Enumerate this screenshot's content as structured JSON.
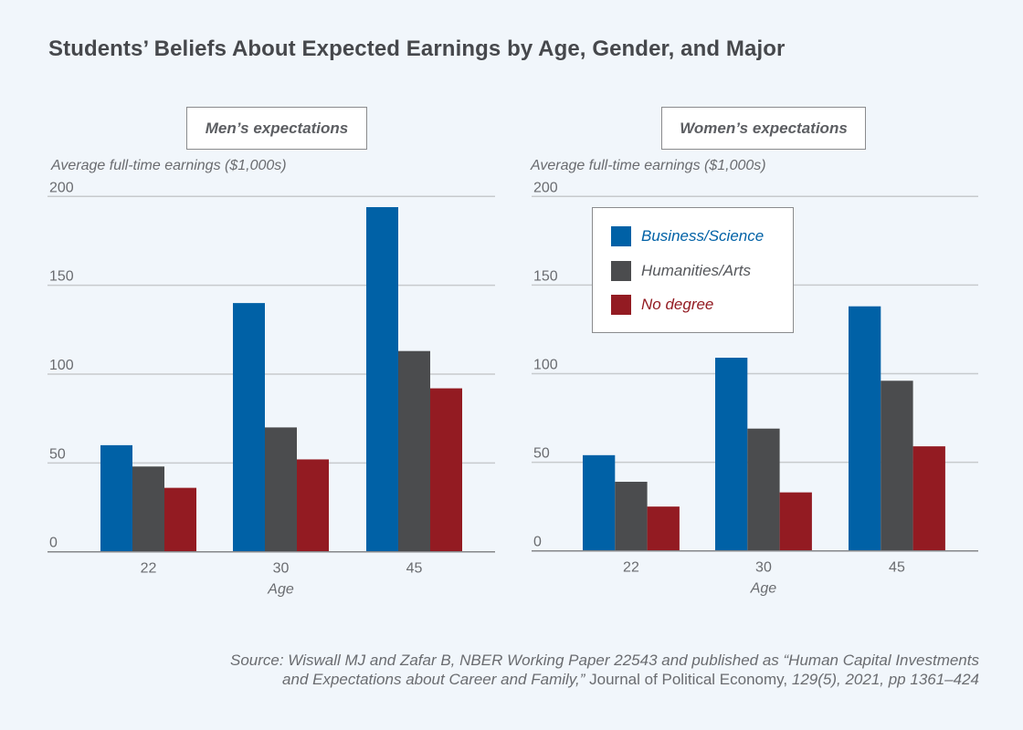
{
  "chart_data": [
    {
      "type": "bar",
      "title": "Students’ Beliefs About Expected Earnings by Age, Gender, and Major",
      "panel_title": "Men’s expectations",
      "ylabel": "Average full-time earnings ($1,000s)",
      "xlabel": "Age",
      "categories": [
        "22",
        "30",
        "45"
      ],
      "ylim": [
        0,
        200
      ],
      "yticks": [
        0,
        50,
        100,
        150,
        200
      ],
      "grid": true,
      "series": [
        {
          "name": "Business/Science",
          "color": "#0061a6",
          "values": [
            60,
            140,
            194
          ]
        },
        {
          "name": "Humanities/Arts",
          "color": "#4b4c4e",
          "values": [
            48,
            70,
            113
          ]
        },
        {
          "name": "No degree",
          "color": "#931b22",
          "values": [
            36,
            52,
            92
          ]
        }
      ]
    },
    {
      "type": "bar",
      "panel_title": "Women’s expectations",
      "ylabel": "Average full-time earnings ($1,000s)",
      "xlabel": "Age",
      "categories": [
        "22",
        "30",
        "45"
      ],
      "ylim": [
        0,
        200
      ],
      "yticks": [
        0,
        50,
        100,
        150,
        200
      ],
      "grid": true,
      "legend_position": "top-left",
      "series": [
        {
          "name": "Business/Science",
          "color": "#0061a6",
          "values": [
            54,
            109,
            138
          ]
        },
        {
          "name": "Humanities/Arts",
          "color": "#4b4c4e",
          "values": [
            39,
            69,
            96
          ]
        },
        {
          "name": "No degree",
          "color": "#931b22",
          "values": [
            25,
            33,
            59
          ]
        }
      ]
    }
  ],
  "title": "Students’ Beliefs About Expected Earnings by Age, Gender, and Major",
  "panels": {
    "men": {
      "label": "Men’s expectations",
      "ylabel": "Average full-time earnings ($1,000s)",
      "xlabel": "Age"
    },
    "women": {
      "label": "Women’s expectations",
      "ylabel": "Average full-time earnings ($1,000s)",
      "xlabel": "Age"
    }
  },
  "legend": [
    {
      "label": "Business/Science",
      "color": "#0061a6"
    },
    {
      "label": "Humanities/Arts",
      "color": "#4b4c4e"
    },
    {
      "label": "No degree",
      "color": "#931b22"
    }
  ],
  "source": {
    "line1": "Source: Wiswall MJ and Zafar B, NBER Working Paper 22543 and published as “Human Capital Investments",
    "line2_italic": "and Expectations about Career and Family,”",
    "line2_upright": " Journal of Political Economy, ",
    "line2_end": "129(5), 2021, pp 1361–424"
  }
}
